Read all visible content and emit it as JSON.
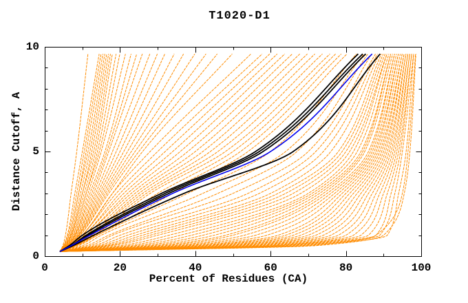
{
  "chart_data": {
    "type": "line",
    "title": "T1020-D1",
    "xlabel": "Percent of Residues (CA)",
    "ylabel": "Distance Cutoff, A",
    "xlim": [
      0,
      100
    ],
    "ylim": [
      0,
      10
    ],
    "x_major_ticks": [
      0,
      20,
      40,
      60,
      80,
      100
    ],
    "x_minor_ticks": [
      10,
      30,
      50,
      70,
      90
    ],
    "y_major_ticks": [
      0,
      5,
      10
    ],
    "y_minor_ticks": [
      1,
      2,
      3,
      4,
      6,
      7,
      8,
      9
    ],
    "grid": false,
    "legend": null,
    "colors": {
      "model_orange": "#ff8c00",
      "reference_black": "#000000",
      "highlight_blue": "#0000ee",
      "frame": "#000000",
      "background": "#ffffff"
    },
    "curve_model": {
      "note": "Each curve = percent of CA residues (x) fitting under distance cutoff (y). Values are percent at knot cutoffs.",
      "origin": {
        "cutoff": 0.22,
        "percent": 4
      },
      "knot_cutoffs": [
        0.5,
        1,
        3,
        5,
        9.7
      ],
      "top_cutoff": 9.66
    },
    "series": [
      {
        "name": "predicted-model-curves",
        "color_key": "model_orange",
        "line_width": 1,
        "dashed": true,
        "curves_percent_at_knots": [
          [
            4.8,
            5.5,
            7,
            8.5,
            11.5
          ],
          [
            5,
            6,
            8,
            10,
            14.5
          ],
          [
            5,
            6.2,
            8.5,
            10.5,
            15
          ],
          [
            5.2,
            6.5,
            9,
            11,
            15.5
          ],
          [
            5.2,
            6.5,
            9,
            11.5,
            16
          ],
          [
            5.4,
            6.8,
            9.5,
            12,
            16.5
          ],
          [
            5.4,
            7,
            10,
            12.5,
            17
          ],
          [
            5.6,
            7,
            10,
            13,
            17.5
          ],
          [
            5.6,
            7.2,
            10.5,
            13.5,
            18
          ],
          [
            5.8,
            7.5,
            11,
            14,
            19
          ],
          [
            5.8,
            7.5,
            11,
            14.5,
            20
          ],
          [
            6,
            7.8,
            11.5,
            15,
            21.5
          ],
          [
            6,
            8,
            12,
            16,
            23
          ],
          [
            6.2,
            8,
            12.5,
            16.5,
            24.5
          ],
          [
            6.2,
            8.2,
            13,
            17,
            26
          ],
          [
            6.4,
            8.5,
            13.5,
            18,
            28
          ],
          [
            6.4,
            8.5,
            14,
            19,
            30
          ],
          [
            6.6,
            8.8,
            14.5,
            20,
            32
          ],
          [
            6.6,
            9,
            15,
            21,
            34.5
          ],
          [
            6.8,
            9,
            15.5,
            22,
            37
          ],
          [
            6.8,
            9.2,
            16,
            23,
            40
          ],
          [
            7,
            9.5,
            16.5,
            24,
            43
          ],
          [
            7,
            9.5,
            17,
            25,
            46
          ],
          [
            7.2,
            10,
            18,
            26,
            50
          ],
          [
            7,
            10,
            18,
            28,
            55
          ],
          [
            7.2,
            10,
            19,
            30,
            58
          ],
          [
            7.2,
            10.5,
            20,
            32,
            60
          ],
          [
            7.4,
            10.5,
            21,
            34,
            62
          ],
          [
            7.4,
            11,
            22,
            36,
            64
          ],
          [
            7.6,
            11,
            23,
            38,
            66
          ],
          [
            7.6,
            11.5,
            24,
            40,
            68
          ],
          [
            7.8,
            12,
            25,
            42,
            70
          ],
          [
            7.8,
            12,
            26,
            44,
            72
          ],
          [
            8,
            12.5,
            27,
            46,
            74
          ],
          [
            8,
            13,
            28,
            48,
            76
          ],
          [
            8.2,
            13,
            30,
            50,
            77.5
          ],
          [
            8.2,
            13.5,
            32,
            52,
            79
          ],
          [
            8.4,
            14,
            34,
            54,
            80.5
          ],
          [
            9,
            14,
            38,
            60,
            83
          ],
          [
            10,
            15,
            42,
            64,
            85
          ],
          [
            11,
            17,
            46,
            67,
            86
          ],
          [
            12,
            18,
            50,
            70,
            87
          ],
          [
            13,
            20,
            54,
            72,
            88
          ],
          [
            14,
            22,
            57,
            74,
            88.5
          ],
          [
            15,
            24,
            60,
            76,
            89
          ],
          [
            16,
            26,
            62,
            78,
            89.5
          ],
          [
            17,
            28,
            64,
            79,
            90
          ],
          [
            18,
            30,
            66,
            80,
            90.5
          ],
          [
            20,
            33,
            68,
            81,
            91
          ],
          [
            22,
            36,
            70,
            82,
            91
          ],
          [
            24,
            39,
            71,
            83,
            91.5
          ],
          [
            26,
            42,
            72,
            84,
            92
          ],
          [
            28,
            45,
            73,
            84.5,
            92
          ],
          [
            30,
            48,
            74,
            85,
            92.5
          ],
          [
            32,
            50,
            75,
            86,
            93
          ],
          [
            34,
            53,
            76,
            86.5,
            93
          ],
          [
            36,
            56,
            77,
            87,
            93.5
          ],
          [
            38,
            59,
            78,
            87.5,
            94
          ],
          [
            40,
            62,
            79,
            88,
            94
          ],
          [
            42,
            64,
            80,
            88.5,
            94.5
          ],
          [
            44,
            66,
            81,
            89,
            95
          ],
          [
            46,
            68,
            82,
            89.5,
            95
          ],
          [
            48,
            70,
            83,
            90,
            95.5
          ],
          [
            50,
            72,
            84,
            90.5,
            95.5
          ],
          [
            52,
            74,
            85,
            91,
            96
          ],
          [
            54,
            76,
            86,
            91.5,
            96
          ],
          [
            56,
            78,
            87,
            92,
            96.5
          ],
          [
            58,
            80,
            88,
            92.5,
            96.5
          ],
          [
            60,
            82,
            89,
            93,
            97
          ],
          [
            61,
            84,
            90,
            93.5,
            97
          ],
          [
            62,
            86,
            91,
            94,
            97.5
          ],
          [
            64,
            88,
            92,
            94.5,
            97.5
          ],
          [
            66,
            89,
            93,
            95,
            98
          ],
          [
            68,
            91,
            94,
            96,
            98
          ],
          [
            70,
            88,
            95,
            96.5,
            98.5
          ],
          [
            72,
            90,
            95.5,
            97,
            98.6
          ]
        ]
      },
      {
        "name": "reference-curves",
        "color_key": "reference_black",
        "line_width": 1.8,
        "dashed": false,
        "curves_percent_at_knots": [
          [
            6.5,
            10,
            31,
            56,
            83.5
          ],
          [
            7,
            11,
            32,
            57,
            84.7
          ],
          [
            7.2,
            11.5,
            33,
            58,
            85.5
          ],
          [
            7.5,
            13,
            37,
            66,
            89.3
          ]
        ]
      },
      {
        "name": "highlighted-model-curve",
        "color_key": "highlight_blue",
        "line_width": 1.6,
        "dashed": false,
        "curves_percent_at_knots": [
          [
            7,
            12,
            34,
            60,
            87.2
          ]
        ]
      }
    ]
  }
}
